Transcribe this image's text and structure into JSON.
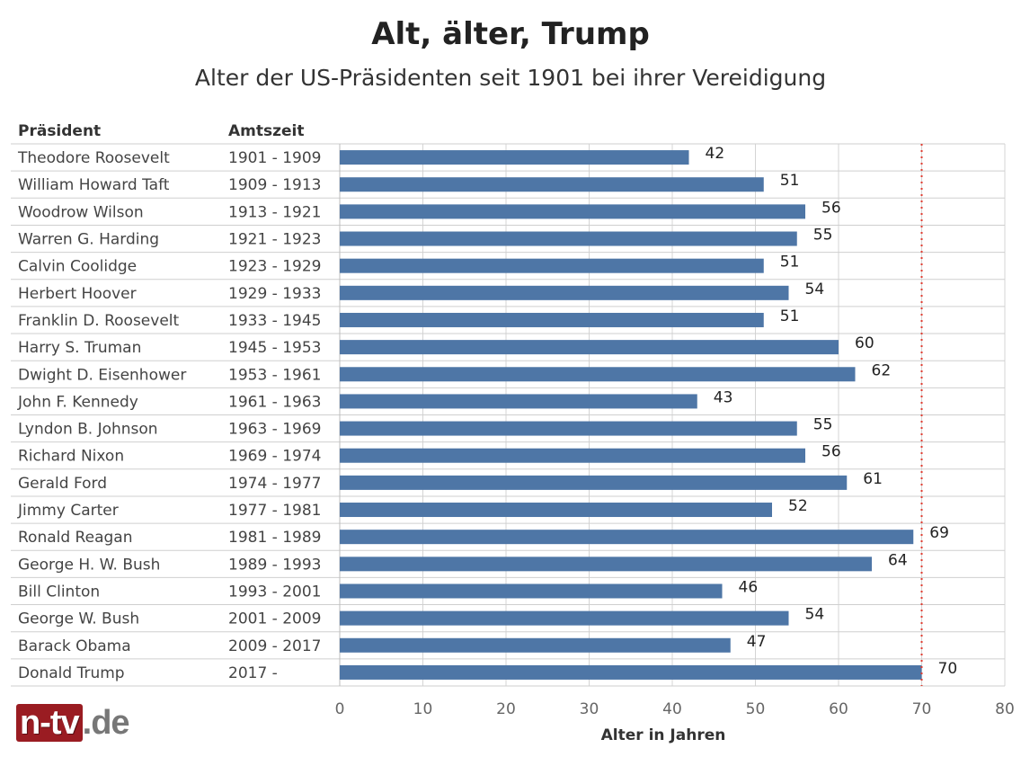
{
  "header": {
    "title": "Alt, älter, Trump",
    "subtitle": "Alter der US-Präsidenten seit 1901 bei ihrer Vereidigung"
  },
  "columns": {
    "president": "Präsident",
    "term": "Amtszeit"
  },
  "logo": {
    "brand": "n-tv",
    "suffix": ".de"
  },
  "colors": {
    "bar": "#4e76a6",
    "reference_line": "#e03c31",
    "grid": "#d4d4d4",
    "row_line": "#cfcfcf"
  },
  "chart_data": {
    "type": "bar",
    "orientation": "horizontal",
    "title": "Alt, älter, Trump",
    "subtitle": "Alter der US-Präsidenten seit 1901 bei ihrer Vereidigung",
    "xlabel": "Alter in Jahren",
    "ylabel": "",
    "xlim": [
      0,
      80
    ],
    "xticks": [
      0,
      10,
      20,
      30,
      40,
      50,
      60,
      70,
      80
    ],
    "reference_line": {
      "value": 70,
      "style": "dotted"
    },
    "rows": [
      {
        "president": "Theodore Roosevelt",
        "term": "1901 - 1909",
        "age": 42
      },
      {
        "president": "William Howard Taft",
        "term": "1909 - 1913",
        "age": 51
      },
      {
        "president": "Woodrow Wilson",
        "term": "1913 - 1921",
        "age": 56
      },
      {
        "president": "Warren G. Harding",
        "term": "1921 - 1923",
        "age": 55
      },
      {
        "president": "Calvin Coolidge",
        "term": "1923 - 1929",
        "age": 51
      },
      {
        "president": "Herbert Hoover",
        "term": "1929 - 1933",
        "age": 54
      },
      {
        "president": "Franklin D. Roosevelt",
        "term": "1933 - 1945",
        "age": 51
      },
      {
        "president": "Harry S. Truman",
        "term": "1945 - 1953",
        "age": 60
      },
      {
        "president": "Dwight D. Eisenhower",
        "term": "1953 - 1961",
        "age": 62
      },
      {
        "president": "John F. Kennedy",
        "term": "1961 - 1963",
        "age": 43
      },
      {
        "president": "Lyndon B. Johnson",
        "term": "1963 - 1969",
        "age": 55
      },
      {
        "president": "Richard Nixon",
        "term": "1969 - 1974",
        "age": 56
      },
      {
        "president": "Gerald Ford",
        "term": "1974 - 1977",
        "age": 61
      },
      {
        "president": "Jimmy Carter",
        "term": "1977 - 1981",
        "age": 52
      },
      {
        "president": "Ronald Reagan",
        "term": "1981 - 1989",
        "age": 69
      },
      {
        "president": "George H. W. Bush",
        "term": "1989 - 1993",
        "age": 64
      },
      {
        "president": "Bill Clinton",
        "term": "1993 - 2001",
        "age": 46
      },
      {
        "president": "George W. Bush",
        "term": "2001 - 2009",
        "age": 54
      },
      {
        "president": "Barack Obama",
        "term": "2009 - 2017",
        "age": 47
      },
      {
        "president": "Donald Trump",
        "term": "2017 -",
        "age": 70
      }
    ]
  }
}
